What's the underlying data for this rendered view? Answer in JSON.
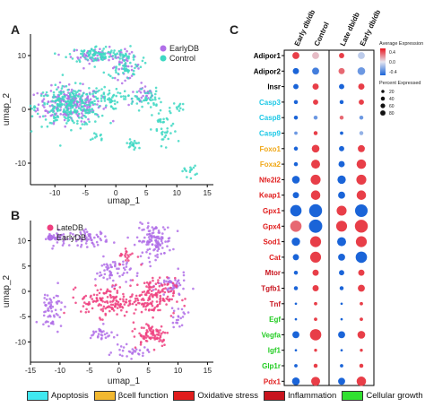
{
  "panels": {
    "A": "A",
    "B": "B",
    "C": "C"
  },
  "chart_data": [
    {
      "panel": "A",
      "type": "scatter",
      "xlabel": "umap_1",
      "ylabel": "umap_2",
      "xlim": [
        -14,
        16
      ],
      "ylim": [
        -14,
        14
      ],
      "xticks": [
        -10,
        -5,
        0,
        5,
        10,
        15
      ],
      "yticks": [
        -10,
        0,
        10
      ],
      "legend": {
        "position": "top-right",
        "entries": [
          "EarlyDB",
          "Control"
        ]
      },
      "series": [
        {
          "name": "EarlyDB",
          "color": "#b06ee8",
          "clusters": [
            {
              "x": -7.5,
              "y": 1.0,
              "sx": 2.6,
              "sy": 1.6,
              "n": 220
            },
            {
              "x": -3.0,
              "y": 10.0,
              "sx": 2.2,
              "sy": 0.7,
              "n": 60
            },
            {
              "x": 1.5,
              "y": 8.0,
              "sx": 1.2,
              "sy": 1.2,
              "n": 40
            },
            {
              "x": 4.5,
              "y": 2.5,
              "sx": 1.2,
              "sy": 0.9,
              "n": 30
            }
          ]
        },
        {
          "name": "Control",
          "color": "#3ed8c3",
          "clusters": [
            {
              "x": -7.5,
              "y": 0.5,
              "sx": 2.8,
              "sy": 1.8,
              "n": 260
            },
            {
              "x": -3.0,
              "y": 10.2,
              "sx": 2.4,
              "sy": 0.8,
              "n": 90
            },
            {
              "x": 1.5,
              "y": 8.5,
              "sx": 1.4,
              "sy": 1.4,
              "n": 60
            },
            {
              "x": -1.5,
              "y": 2.0,
              "sx": 1.0,
              "sy": 1.0,
              "n": 40
            },
            {
              "x": 4.5,
              "y": 2.0,
              "sx": 1.5,
              "sy": 1.0,
              "n": 50
            },
            {
              "x": 8.0,
              "y": -4.0,
              "sx": 1.0,
              "sy": 2.0,
              "n": 40
            },
            {
              "x": 3.0,
              "y": -6.5,
              "sx": 0.8,
              "sy": 0.6,
              "n": 20
            },
            {
              "x": -3.0,
              "y": -5.0,
              "sx": 0.5,
              "sy": 0.5,
              "n": 10
            },
            {
              "x": 12.0,
              "y": -11.5,
              "sx": 0.6,
              "sy": 0.5,
              "n": 15
            },
            {
              "x": 10.5,
              "y": 0.5,
              "sx": 0.5,
              "sy": 0.5,
              "n": 10
            }
          ]
        }
      ]
    },
    {
      "panel": "B",
      "type": "scatter",
      "xlabel": "umap_1",
      "ylabel": "umap_2",
      "xlim": [
        -15,
        16
      ],
      "ylim": [
        -14,
        14
      ],
      "xticks": [
        -15,
        -10,
        -5,
        0,
        5,
        10,
        15
      ],
      "yticks": [
        -10,
        -5,
        0,
        5,
        10
      ],
      "legend": {
        "position": "top-left",
        "entries": [
          "LateDB",
          "EarlyDB"
        ]
      },
      "series": [
        {
          "name": "EarlyDB",
          "color": "#b06ee8",
          "clusters": [
            {
              "x": 6.0,
              "y": 10.0,
              "sx": 1.5,
              "sy": 1.6,
              "n": 120
            },
            {
              "x": -5.0,
              "y": 10.5,
              "sx": 1.6,
              "sy": 0.8,
              "n": 60
            },
            {
              "x": -10.0,
              "y": 10.5,
              "sx": 1.0,
              "sy": 0.7,
              "n": 30
            },
            {
              "x": -1.0,
              "y": 4.0,
              "sx": 1.5,
              "sy": 1.3,
              "n": 60
            },
            {
              "x": -11.5,
              "y": -2.5,
              "sx": 1.0,
              "sy": 1.6,
              "n": 40
            },
            {
              "x": -11.5,
              "y": -6.0,
              "sx": 1.0,
              "sy": 0.8,
              "n": 20
            },
            {
              "x": 9.0,
              "y": 1.0,
              "sx": 1.2,
              "sy": 1.2,
              "n": 50
            },
            {
              "x": -3.0,
              "y": -8.5,
              "sx": 1.2,
              "sy": 0.8,
              "n": 30
            },
            {
              "x": 2.0,
              "y": -12.0,
              "sx": 1.5,
              "sy": 0.6,
              "n": 30
            },
            {
              "x": 10.0,
              "y": -5.0,
              "sx": 0.8,
              "sy": 1.0,
              "n": 20
            }
          ]
        },
        {
          "name": "LateDB",
          "color": "#ef3f7f",
          "clusters": [
            {
              "x": 5.5,
              "y": -1.0,
              "sx": 2.0,
              "sy": 1.8,
              "n": 160
            },
            {
              "x": -2.0,
              "y": -2.0,
              "sx": 2.2,
              "sy": 1.5,
              "n": 130
            },
            {
              "x": 5.5,
              "y": -8.5,
              "sx": 1.6,
              "sy": 1.2,
              "n": 80
            },
            {
              "x": 1.5,
              "y": 7.0,
              "sx": 0.8,
              "sy": 0.8,
              "n": 20
            }
          ]
        }
      ]
    },
    {
      "panel": "C",
      "type": "dotplot",
      "columns": [
        "Early db/db",
        "Control",
        "Late db/db",
        "Early db/db"
      ],
      "genes": [
        {
          "name": "Adipor1",
          "category": "none",
          "color": "#000000"
        },
        {
          "name": "Adipor2",
          "category": "none",
          "color": "#000000"
        },
        {
          "name": "Insr",
          "category": "none",
          "color": "#000000"
        },
        {
          "name": "Casp3",
          "category": "Apoptosis",
          "color": "#1ec8e6"
        },
        {
          "name": "Casp8",
          "category": "Apoptosis",
          "color": "#1ec8e6"
        },
        {
          "name": "Casp9",
          "category": "Apoptosis",
          "color": "#1ec8e6"
        },
        {
          "name": "Foxo1",
          "category": "βcell function",
          "color": "#f0a818"
        },
        {
          "name": "Foxa2",
          "category": "βcell function",
          "color": "#f0a818"
        },
        {
          "name": "Nfe2l2",
          "category": "Oxidative stress",
          "color": "#e01c1c"
        },
        {
          "name": "Keap1",
          "category": "Oxidative stress",
          "color": "#e01c1c"
        },
        {
          "name": "Gpx1",
          "category": "Oxidative stress",
          "color": "#e01c1c"
        },
        {
          "name": "Gpx4",
          "category": "Oxidative stress",
          "color": "#e01c1c"
        },
        {
          "name": "Sod1",
          "category": "Oxidative stress",
          "color": "#e01c1c"
        },
        {
          "name": "Cat",
          "category": "Oxidative stress",
          "color": "#e01c1c"
        },
        {
          "name": "Mtor",
          "category": "Inflammation",
          "color": "#c8141e"
        },
        {
          "name": "Tgfb1",
          "category": "Inflammation",
          "color": "#c8141e"
        },
        {
          "name": "Tnf",
          "category": "Inflammation",
          "color": "#c8141e"
        },
        {
          "name": "Egf",
          "category": "Cellular growth",
          "color": "#22cc22"
        },
        {
          "name": "Vegfa",
          "category": "Cellular growth",
          "color": "#22cc22"
        },
        {
          "name": "Igf1",
          "category": "Cellular growth",
          "color": "#22cc22"
        },
        {
          "name": "Glp1r",
          "category": "Cellular growth",
          "color": "#22cc22"
        },
        {
          "name": "Pdx1",
          "category": "Cellular growth",
          "color": "#e01c1c"
        }
      ],
      "pct_expressed": [
        [
          20,
          20,
          10,
          20
        ],
        [
          15,
          20,
          15,
          25
        ],
        [
          10,
          15,
          10,
          15
        ],
        [
          5,
          10,
          5,
          10
        ],
        [
          5,
          5,
          5,
          5
        ],
        [
          3,
          5,
          3,
          5
        ],
        [
          5,
          25,
          10,
          20
        ],
        [
          5,
          35,
          15,
          40
        ],
        [
          25,
          45,
          30,
          45
        ],
        [
          15,
          40,
          20,
          40
        ],
        [
          60,
          80,
          45,
          75
        ],
        [
          60,
          85,
          55,
          80
        ],
        [
          30,
          55,
          35,
          55
        ],
        [
          15,
          55,
          20,
          60
        ],
        [
          5,
          15,
          10,
          15
        ],
        [
          5,
          15,
          5,
          20
        ],
        [
          1,
          3,
          1,
          3
        ],
        [
          1,
          3,
          1,
          3
        ],
        [
          20,
          60,
          20,
          25
        ],
        [
          1,
          2,
          1,
          2
        ],
        [
          3,
          5,
          3,
          5
        ],
        [
          25,
          35,
          20,
          40
        ]
      ],
      "avg_expression": [
        [
          0.4,
          0.1,
          0.4,
          -0.1
        ],
        [
          -0.5,
          -0.4,
          0.3,
          -0.3
        ],
        [
          -0.5,
          0.4,
          -0.5,
          0.4
        ],
        [
          -0.5,
          0.4,
          -0.5,
          0.4
        ],
        [
          -0.5,
          -0.3,
          0.3,
          -0.3
        ],
        [
          -0.3,
          0.4,
          -0.5,
          -0.2
        ],
        [
          -0.5,
          0.4,
          -0.5,
          0.4
        ],
        [
          -0.5,
          0.4,
          -0.5,
          0.4
        ],
        [
          -0.5,
          0.4,
          -0.5,
          0.4
        ],
        [
          -0.5,
          0.4,
          -0.5,
          0.4
        ],
        [
          -0.5,
          -0.5,
          0.4,
          -0.5
        ],
        [
          0.3,
          -0.5,
          0.4,
          0.4
        ],
        [
          -0.5,
          0.4,
          -0.5,
          0.4
        ],
        [
          -0.5,
          0.4,
          -0.5,
          -0.5
        ],
        [
          -0.5,
          0.4,
          -0.5,
          0.4
        ],
        [
          -0.5,
          0.4,
          -0.5,
          0.4
        ],
        [
          -0.5,
          0.4,
          -0.5,
          0.4
        ],
        [
          -0.5,
          0.4,
          -0.5,
          0.4
        ],
        [
          -0.5,
          0.4,
          -0.5,
          0.4
        ],
        [
          -0.5,
          0.4,
          -0.5,
          0.4
        ],
        [
          -0.5,
          0.4,
          -0.5,
          0.4
        ],
        [
          -0.5,
          0.4,
          -0.5,
          0.4
        ]
      ],
      "legend": {
        "avg_title": "Average Expression",
        "avg_ticks": [
          "0.4",
          "0.0",
          "-0.4"
        ],
        "avg_range": [
          -0.5,
          0.5
        ],
        "colors": {
          "high": "#e8141e",
          "low": "#1a64d8"
        },
        "pct_title": "Percent Expressed",
        "pct_ticks": [
          20,
          40,
          60,
          80
        ]
      }
    }
  ],
  "category_legend": [
    {
      "label": "Apoptosis",
      "color": "#40e8f0"
    },
    {
      "label": "βcell function",
      "color": "#f2b830"
    },
    {
      "label": "Oxidative stress",
      "color": "#e01c1c"
    },
    {
      "label": "Inflammation",
      "color": "#c8141e"
    },
    {
      "label": "Cellular growth",
      "color": "#30e030"
    }
  ]
}
